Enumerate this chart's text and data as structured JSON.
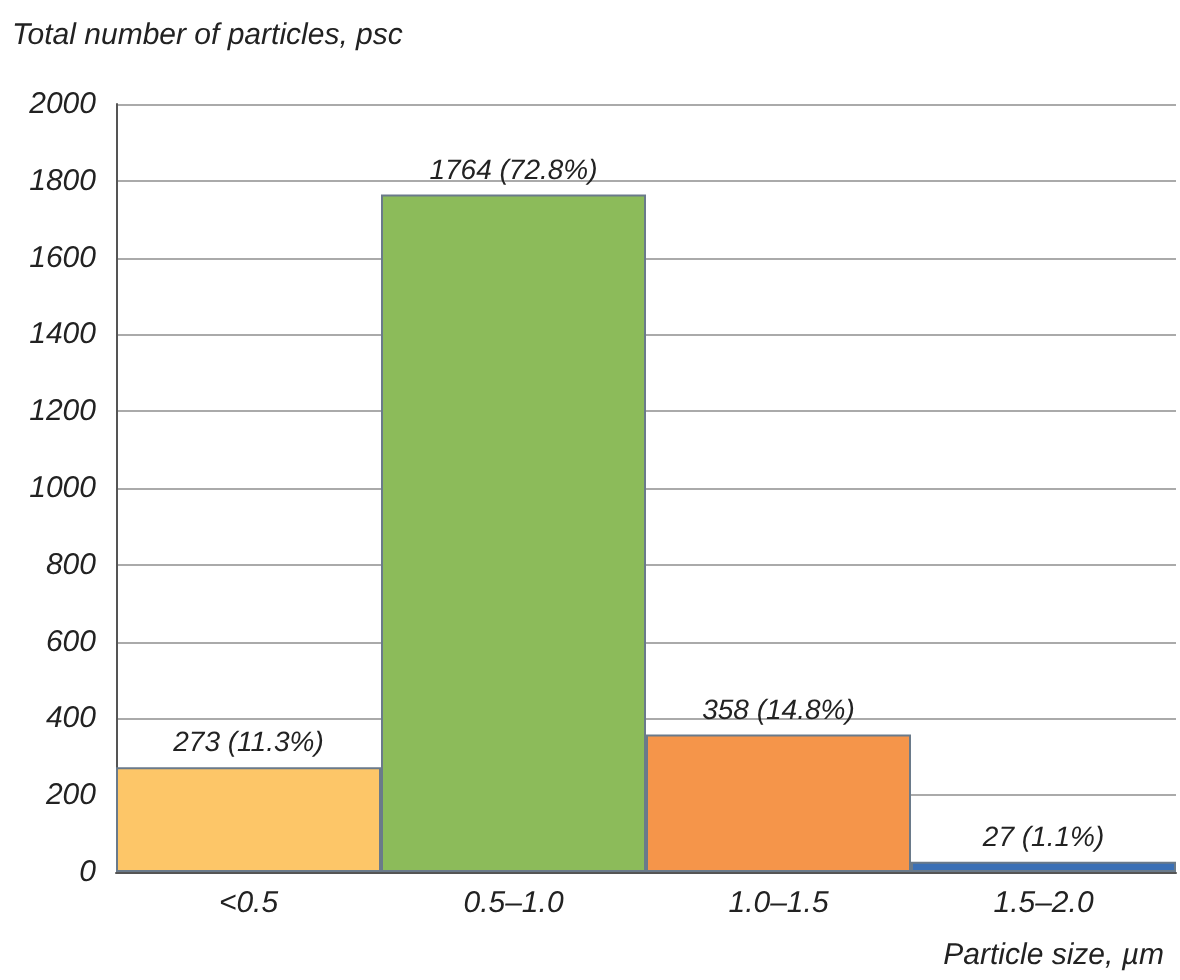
{
  "chart_data": {
    "type": "bar",
    "ylabel": "Total number of particles, psc",
    "xlabel": "Particle size, µm",
    "categories": [
      "<0.5",
      "0.5–1.0",
      "1.0–1.5",
      "1.5–2.0"
    ],
    "values": [
      273,
      1764,
      358,
      27
    ],
    "colors": [
      "#fdc668",
      "#8cbb5a",
      "#f5954a",
      "#3b70b6"
    ],
    "value_labels": [
      "273 (11.3%)",
      "1764 (72.8%)",
      "358 (14.8%)",
      "27 (1.1%)"
    ],
    "ylim": [
      0,
      2000
    ],
    "yticks": [
      0,
      200,
      400,
      600,
      800,
      1000,
      1200,
      1400,
      1600,
      1800,
      2000
    ],
    "grid": "y"
  }
}
